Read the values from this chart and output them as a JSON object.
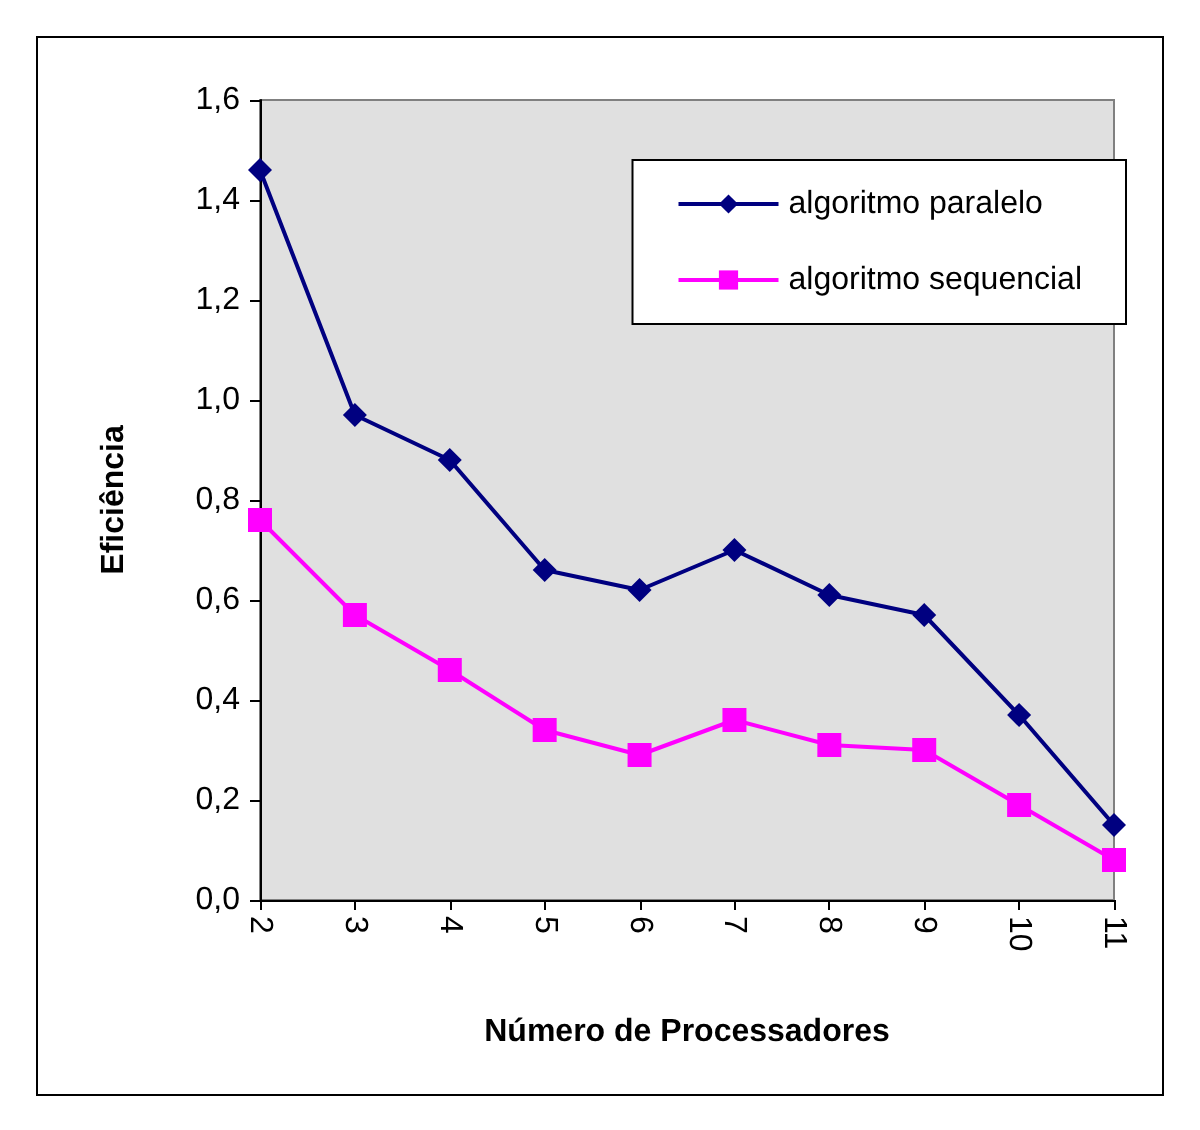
{
  "chart_data": {
    "type": "line",
    "xlabel": "Número de Processadores",
    "ylabel": "Eficiência",
    "categories": [
      "2",
      "3",
      "4",
      "5",
      "6",
      "7",
      "8",
      "9",
      "10",
      "11"
    ],
    "series": [
      {
        "name": "algoritmo paralelo",
        "color": "#000080",
        "marker": "diamond",
        "values": [
          1.46,
          0.97,
          0.88,
          0.66,
          0.62,
          0.7,
          0.61,
          0.57,
          0.37,
          0.15
        ]
      },
      {
        "name": "algoritmo sequencial",
        "color": "#ff00ff",
        "marker": "square",
        "values": [
          0.76,
          0.57,
          0.46,
          0.34,
          0.29,
          0.36,
          0.31,
          0.3,
          0.19,
          0.08
        ]
      }
    ],
    "ylim": [
      0,
      1.6
    ],
    "yticks": [
      {
        "value": 0,
        "label": "0,0"
      },
      {
        "value": 0.2,
        "label": "0,2"
      },
      {
        "value": 0.4,
        "label": "0,4"
      },
      {
        "value": 0.6,
        "label": "0,6"
      },
      {
        "value": 0.8,
        "label": "0,8"
      },
      {
        "value": 1.0,
        "label": "1,0"
      },
      {
        "value": 1.2,
        "label": "1,2"
      },
      {
        "value": 1.4,
        "label": "1,4"
      },
      {
        "value": 1.6,
        "label": "1,6"
      }
    ],
    "grid": false,
    "legend": "top right",
    "line_style": "solid"
  }
}
